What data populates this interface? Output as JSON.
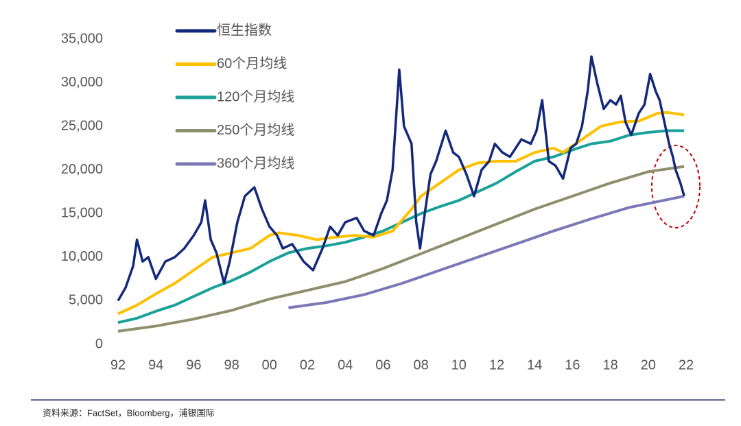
{
  "chart_data": {
    "type": "line",
    "xlim": [
      1992,
      2022
    ],
    "ylim": [
      0,
      35000
    ],
    "xticks": [
      {
        "value": 1992,
        "label": "92"
      },
      {
        "value": 1994,
        "label": "94"
      },
      {
        "value": 1996,
        "label": "96"
      },
      {
        "value": 1998,
        "label": "98"
      },
      {
        "value": 2000,
        "label": "00"
      },
      {
        "value": 2002,
        "label": "02"
      },
      {
        "value": 2004,
        "label": "04"
      },
      {
        "value": 2006,
        "label": "06"
      },
      {
        "value": 2008,
        "label": "08"
      },
      {
        "value": 2010,
        "label": "10"
      },
      {
        "value": 2012,
        "label": "12"
      },
      {
        "value": 2014,
        "label": "14"
      },
      {
        "value": 2016,
        "label": "16"
      },
      {
        "value": 2018,
        "label": "18"
      },
      {
        "value": 2020,
        "label": "20"
      },
      {
        "value": 2022,
        "label": "22"
      }
    ],
    "yticks": [
      0,
      {
        "value": 5000,
        "label": "5,000"
      },
      {
        "value": 10000,
        "label": "10,000"
      },
      {
        "value": 15000,
        "label": "15,000"
      },
      {
        "value": 20000,
        "label": "20,000"
      },
      {
        "value": 25000,
        "label": "25,000"
      },
      {
        "value": 30000,
        "label": "30,000"
      },
      {
        "value": 35000,
        "label": "35,000"
      }
    ],
    "legend": "upper-left",
    "series": [
      {
        "name": "恒生指数",
        "color": "#13287a",
        "x": [
          1992.0,
          1992.4,
          1992.8,
          1993.0,
          1993.3,
          1993.6,
          1994.0,
          1994.5,
          1995.0,
          1995.5,
          1996.0,
          1996.4,
          1996.6,
          1996.9,
          1997.2,
          1997.6,
          1997.9,
          1998.3,
          1998.7,
          1999.2,
          1999.6,
          2000.0,
          2000.4,
          2000.7,
          2001.2,
          2001.8,
          2002.3,
          2002.8,
          2003.2,
          2003.6,
          2004.0,
          2004.6,
          2005.0,
          2005.5,
          2005.9,
          2006.2,
          2006.5,
          2006.85,
          2007.1,
          2007.5,
          2007.75,
          2007.95,
          2008.2,
          2008.5,
          2008.8,
          2009.3,
          2009.7,
          2010.0,
          2010.4,
          2010.8,
          2011.2,
          2011.6,
          2011.9,
          2012.3,
          2012.7,
          2013.3,
          2013.8,
          2014.1,
          2014.4,
          2014.75,
          2015.1,
          2015.5,
          2015.9,
          2016.2,
          2016.5,
          2016.8,
          2017.0,
          2017.3,
          2017.65,
          2018.0,
          2018.3,
          2018.55,
          2018.8,
          2019.1,
          2019.5,
          2019.8,
          2020.1,
          2020.4,
          2020.6,
          2020.85,
          2021.1,
          2021.3,
          2021.45,
          2021.7,
          2021.9
        ],
        "values": [
          5000,
          6500,
          9000,
          12000,
          9500,
          10000,
          7500,
          9500,
          10000,
          11000,
          12500,
          14000,
          16500,
          12000,
          10500,
          7000,
          9500,
          14000,
          17000,
          18000,
          15500,
          13500,
          12500,
          11000,
          11500,
          9500,
          8500,
          11000,
          13500,
          12500,
          14000,
          14500,
          13000,
          12500,
          15000,
          16500,
          20000,
          31500,
          25000,
          23000,
          14000,
          11000,
          15000,
          19500,
          21000,
          24500,
          22000,
          21500,
          19500,
          17000,
          20000,
          21000,
          23000,
          22000,
          21500,
          23500,
          23000,
          24500,
          28000,
          21000,
          20500,
          19000,
          22500,
          23000,
          25000,
          29000,
          33000,
          30000,
          27000,
          28000,
          27500,
          28500,
          25500,
          24000,
          26500,
          27500,
          31000,
          29000,
          28000,
          25500,
          23000,
          21500,
          20000,
          18500,
          17000
        ]
      },
      {
        "name": "60个月均线",
        "color": "#ffc000",
        "x": [
          1992.0,
          1993.0,
          1994.0,
          1995.0,
          1996.0,
          1997.0,
          1998.0,
          1999.0,
          2000.0,
          2000.5,
          2001.5,
          2002.5,
          2003.5,
          2004.5,
          2005.5,
          2006.5,
          2007.5,
          2008.0,
          2009.0,
          2010.0,
          2011.0,
          2012.0,
          2013.0,
          2014.0,
          2015.0,
          2015.5,
          2016.5,
          2017.5,
          2018.5,
          2019.5,
          2020.5,
          2021.0,
          2021.9
        ],
        "values": [
          3500,
          4500,
          5800,
          7000,
          8500,
          10000,
          10500,
          11000,
          12500,
          12800,
          12500,
          12000,
          12300,
          12500,
          12300,
          13000,
          15500,
          17000,
          18500,
          20000,
          20800,
          21000,
          21000,
          22000,
          22500,
          22000,
          23500,
          25000,
          25500,
          25600,
          26500,
          26600,
          26300
        ]
      },
      {
        "name": "120个月均线",
        "color": "#1aa19a",
        "x": [
          1992,
          1993,
          1994,
          1995,
          1996,
          1997,
          1998,
          1999,
          2000,
          2001,
          2002,
          2003,
          2004,
          2005,
          2006,
          2007,
          2008,
          2009,
          2010,
          2011,
          2012,
          2013,
          2014,
          2015,
          2016,
          2017,
          2018,
          2019,
          2020,
          2021,
          2021.9
        ],
        "values": [
          2500,
          3000,
          3800,
          4500,
          5500,
          6500,
          7300,
          8300,
          9500,
          10500,
          11000,
          11300,
          11700,
          12300,
          13000,
          14000,
          15000,
          15800,
          16500,
          17500,
          18500,
          19800,
          21000,
          21500,
          22300,
          23000,
          23300,
          24000,
          24300,
          24500,
          24500
        ]
      },
      {
        "name": "250个月均线",
        "color": "#8f8f6e",
        "x": [
          1992,
          1994,
          1996,
          1998,
          2000,
          2002,
          2004,
          2006,
          2008,
          2010,
          2012,
          2014,
          2016,
          2018,
          2020,
          2021.9
        ],
        "values": [
          1500,
          2100,
          2900,
          3900,
          5200,
          6200,
          7200,
          8700,
          10400,
          12100,
          13800,
          15500,
          17000,
          18500,
          19800,
          20400
        ]
      },
      {
        "name": "360个月均线",
        "color": "#7b78b8",
        "x": [
          2001,
          2003,
          2005,
          2007,
          2009,
          2011,
          2013,
          2015,
          2017,
          2019,
          2021.9
        ],
        "values": [
          4200,
          4800,
          5700,
          7000,
          8500,
          10000,
          11500,
          13000,
          14400,
          15700,
          17000
        ]
      }
    ]
  },
  "source": "资料来源：FactSet，Bloomberg，浦银国际"
}
